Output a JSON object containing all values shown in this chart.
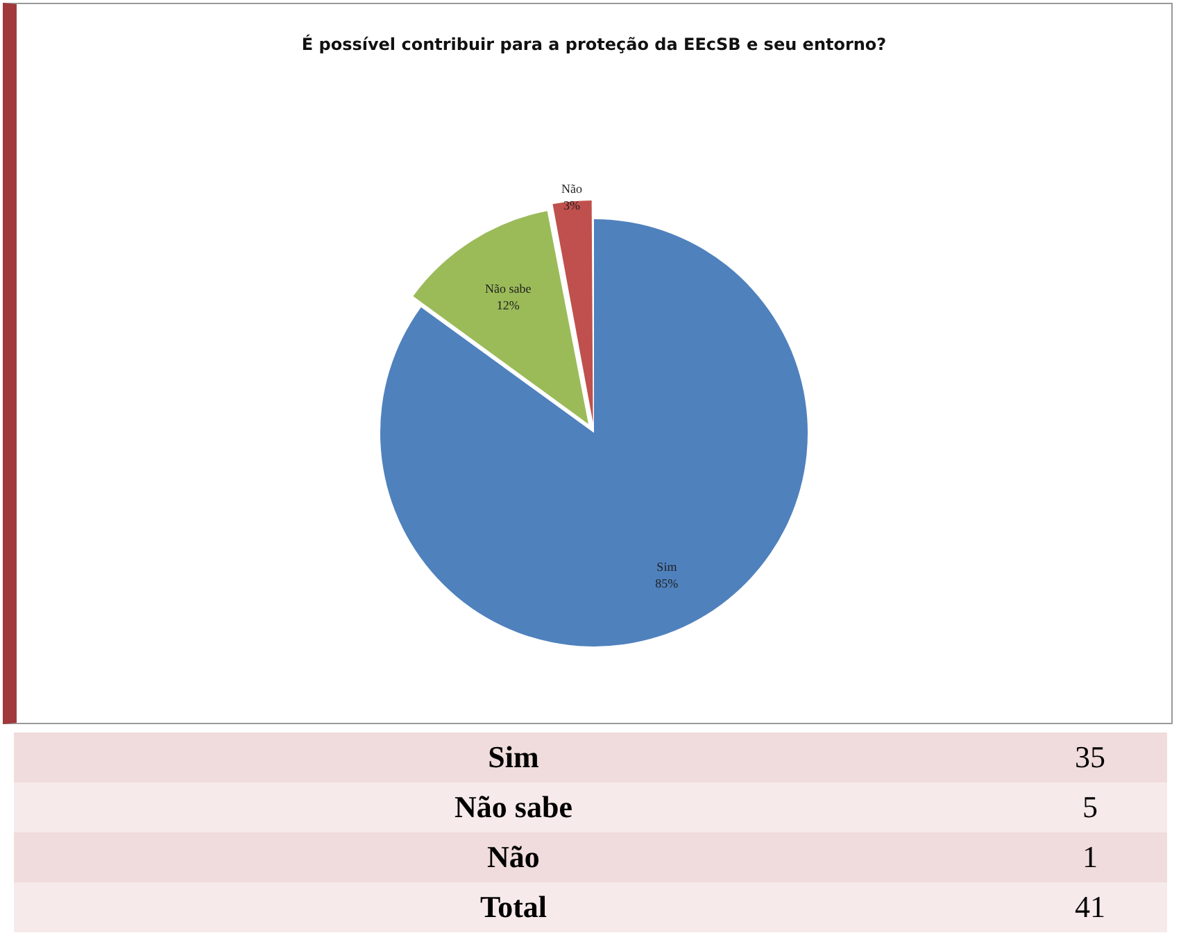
{
  "chart_data": [
    {
      "type": "pie",
      "title": "É possível contribuir para a proteção da EEcSB e seu entorno?",
      "categories": [
        "Sim",
        "Não sabe",
        "Não"
      ],
      "values": [
        85,
        12,
        3
      ],
      "colors": [
        "#4f81bd",
        "#9bbb59",
        "#c0504d"
      ],
      "value_labels": [
        "85%",
        "12%",
        "3%"
      ],
      "legend": false
    },
    {
      "type": "other",
      "categories": [
        "Sim",
        "Não sabe",
        "Não"
      ],
      "values": [
        35,
        5,
        1
      ],
      "data_labels": true,
      "annotations": [
        "Total"
      ],
      "totals": [
        "41"
      ]
    }
  ]
}
